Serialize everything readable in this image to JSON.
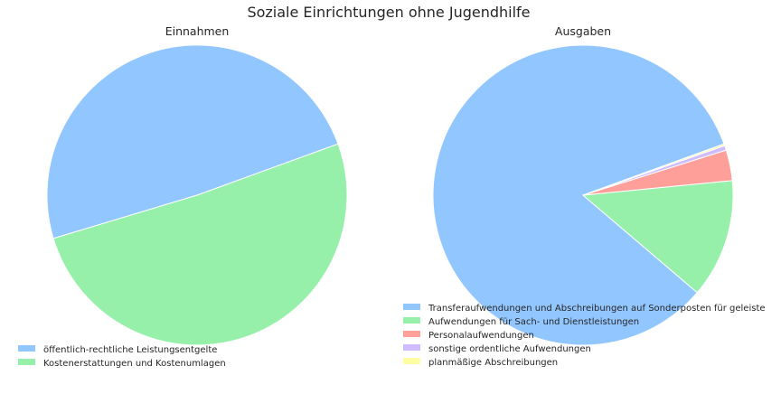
{
  "figure": {
    "title": "Soziale Einrichtungen ohne Jugendhilfe"
  },
  "chart_data": [
    {
      "type": "pie",
      "title": "Einnahmen",
      "start_angle_deg": 20,
      "direction": "counterclockwise",
      "legend_position": "bottom-left",
      "slices": [
        {
          "label": "öffentlich-rechtliche Leistungsentgelte",
          "value": 49.1,
          "color": "#92c6ff"
        },
        {
          "label": "Kostenerstattungen und Kostenumlagen",
          "value": 50.9,
          "color": "#97f0aa"
        }
      ]
    },
    {
      "type": "pie",
      "title": "Ausgaben",
      "start_angle_deg": 20,
      "direction": "counterclockwise",
      "legend_position": "bottom-left",
      "slices": [
        {
          "label": "Transferaufwendungen und Abschreibungen auf Sonderposten für geleiste",
          "value": 83.2,
          "color": "#92c6ff"
        },
        {
          "label": "Aufwendungen für Sach- und Dienstleistungen",
          "value": 12.8,
          "color": "#97f0aa"
        },
        {
          "label": "Personalaufwendungen",
          "value": 3.3,
          "color": "#ff9f9a"
        },
        {
          "label": "sonstige ordentliche Aufwendungen",
          "value": 0.5,
          "color": "#d0bbff"
        },
        {
          "label": "planmäßige Abschreibungen",
          "value": 0.2,
          "color": "#fffea3"
        }
      ]
    }
  ]
}
